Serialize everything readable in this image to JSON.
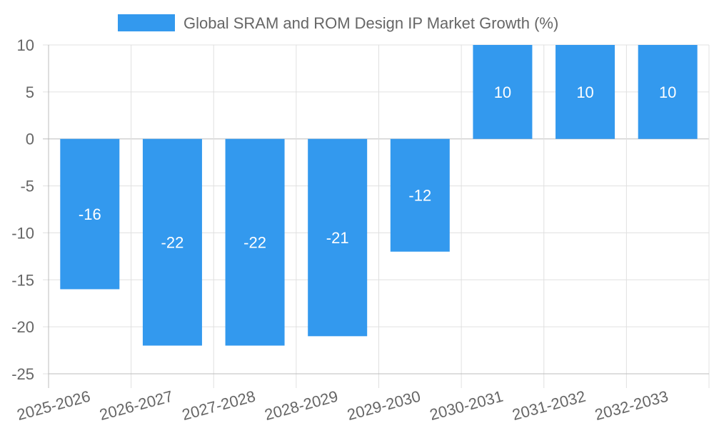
{
  "chart_data": {
    "type": "bar",
    "title": "",
    "xlabel": "",
    "ylabel": "",
    "categories": [
      "2025-2026",
      "2026-2027",
      "2027-2028",
      "2028-2029",
      "2029-2030",
      "2030-2031",
      "2031-2032",
      "2032-2033"
    ],
    "series": [
      {
        "name": "Global SRAM and ROM Design IP Market Growth (%)",
        "values": [
          -16,
          -22,
          -22,
          -21,
          -12,
          10,
          10,
          10
        ],
        "color": "#3399ee"
      }
    ],
    "ylim": [
      -25,
      10
    ],
    "yticks": [
      10,
      5,
      0,
      -5,
      -10,
      -15,
      -20,
      -25
    ],
    "grid": true,
    "legend": "top-center",
    "show_data_labels": true
  },
  "colors": {
    "bar": "#3399ee",
    "grid": "#e0e0e0",
    "axis": "#bdbdbd",
    "tick_text": "#666666",
    "label_text": "#ffffff"
  }
}
